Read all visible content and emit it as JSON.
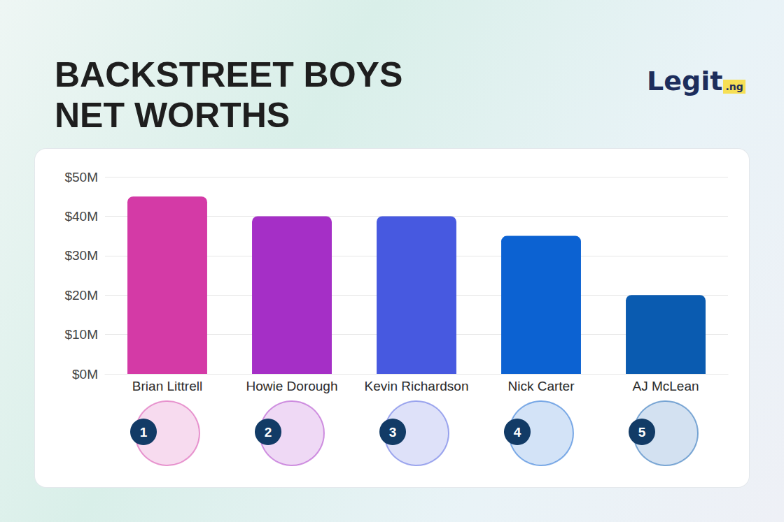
{
  "chart_data": {
    "type": "bar",
    "title": "BACKSTREET BOYS NET WORTHS",
    "logo": {
      "text": "Legit",
      "suffix": ".ng"
    },
    "categories": [
      "Brian Littrell",
      "Howie Dorough",
      "Kevin Richardson",
      "Nick Carter",
      "AJ McLean"
    ],
    "values": [
      45,
      40,
      40,
      35,
      20
    ],
    "colors": [
      "#d43aa6",
      "#a52fc6",
      "#4759e0",
      "#0c62d2",
      "#0a5bb0"
    ],
    "ranks": [
      1,
      2,
      3,
      4,
      5
    ],
    "ylim": [
      0,
      50
    ],
    "yticks": [
      {
        "value": 0,
        "label": "$0M"
      },
      {
        "value": 10,
        "label": "$10M"
      },
      {
        "value": 20,
        "label": "$20M"
      },
      {
        "value": 30,
        "label": "$30M"
      },
      {
        "value": 40,
        "label": "$40M"
      },
      {
        "value": 50,
        "label": "$50M"
      }
    ],
    "grid": true
  }
}
